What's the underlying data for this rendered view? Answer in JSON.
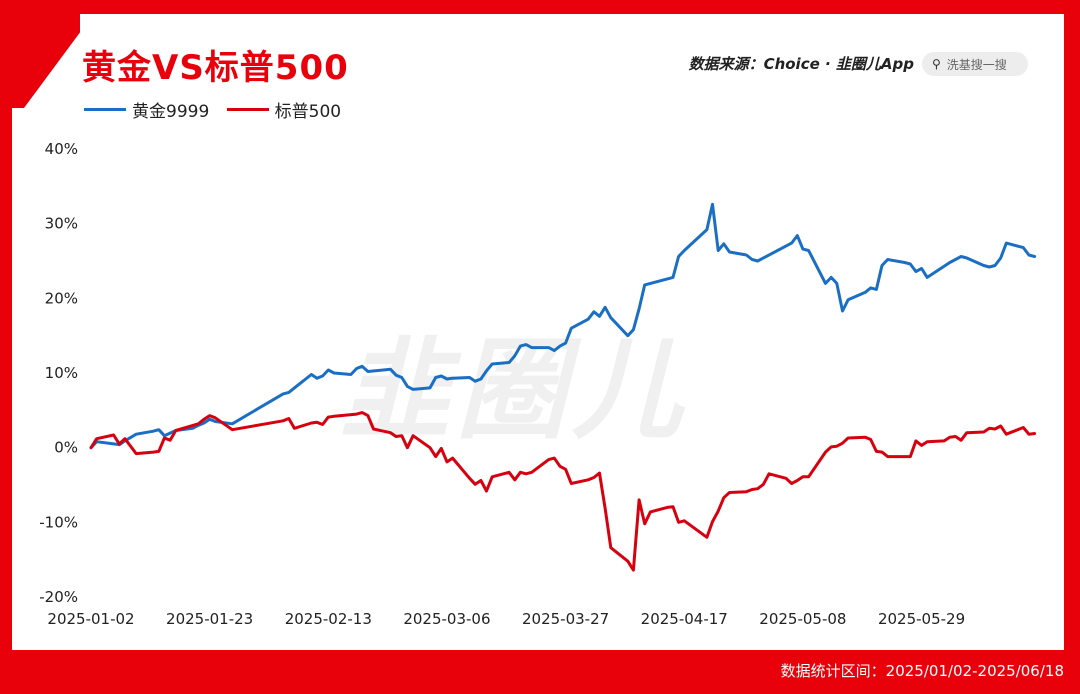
{
  "header": {
    "title": "黄金VS标普500"
  },
  "source": {
    "text": "数据来源：Choice · 韭圈儿App"
  },
  "search": {
    "placeholder": "洗基搜一搜",
    "icon": "search-icon"
  },
  "footer": {
    "text": "数据统计区间：2025/01/02-2025/06/18"
  },
  "watermark": {
    "text": "韭圈儿"
  },
  "colors": {
    "background": "#e8000b",
    "gold": "#1a6fc4",
    "sp500": "#d7000f"
  },
  "chart_data": {
    "type": "line",
    "title": "黄金VS标普500",
    "xlabel": "",
    "ylabel": "",
    "ylim": [
      -20,
      40
    ],
    "yticks": [
      40,
      30,
      20,
      10,
      0,
      -10,
      -20
    ],
    "ytick_labels": [
      "40%",
      "30%",
      "20%",
      "10%",
      "0%",
      "-10%",
      "-20%"
    ],
    "x_start": "2025-01-02",
    "x_end": "2025-06-18",
    "xticks": [
      "2025-01-02",
      "2025-01-23",
      "2025-02-13",
      "2025-03-06",
      "2025-03-27",
      "2025-04-17",
      "2025-05-08",
      "2025-05-29"
    ],
    "grid": false,
    "legend": "top-left",
    "series": [
      {
        "name": "黄金9999",
        "color": "#1a6fc4",
        "points": [
          [
            "2025-01-02",
            0.0
          ],
          [
            "2025-01-03",
            0.8
          ],
          [
            "2025-01-06",
            0.5
          ],
          [
            "2025-01-07",
            0.4
          ],
          [
            "2025-01-08",
            0.9
          ],
          [
            "2025-01-10",
            1.8
          ],
          [
            "2025-01-13",
            2.2
          ],
          [
            "2025-01-14",
            2.4
          ],
          [
            "2025-01-15",
            1.6
          ],
          [
            "2025-01-17",
            2.3
          ],
          [
            "2025-01-20",
            2.6
          ],
          [
            "2025-01-21",
            3.0
          ],
          [
            "2025-01-22",
            3.3
          ],
          [
            "2025-01-23",
            3.8
          ],
          [
            "2025-01-24",
            3.5
          ],
          [
            "2025-01-27",
            3.2
          ],
          [
            "2025-02-05",
            7.2
          ],
          [
            "2025-02-06",
            7.4
          ],
          [
            "2025-02-07",
            8.0
          ],
          [
            "2025-02-10",
            9.8
          ],
          [
            "2025-02-11",
            9.3
          ],
          [
            "2025-02-12",
            9.6
          ],
          [
            "2025-02-13",
            10.4
          ],
          [
            "2025-02-14",
            10.0
          ],
          [
            "2025-02-17",
            9.8
          ],
          [
            "2025-02-18",
            10.6
          ],
          [
            "2025-02-19",
            10.9
          ],
          [
            "2025-02-20",
            10.2
          ],
          [
            "2025-02-24",
            10.5
          ],
          [
            "2025-02-25",
            9.7
          ],
          [
            "2025-02-26",
            9.4
          ],
          [
            "2025-02-27",
            8.2
          ],
          [
            "2025-02-28",
            7.8
          ],
          [
            "2025-03-03",
            8.0
          ],
          [
            "2025-03-04",
            9.4
          ],
          [
            "2025-03-05",
            9.6
          ],
          [
            "2025-03-06",
            9.2
          ],
          [
            "2025-03-07",
            9.3
          ],
          [
            "2025-03-10",
            9.4
          ],
          [
            "2025-03-11",
            8.9
          ],
          [
            "2025-03-12",
            9.2
          ],
          [
            "2025-03-13",
            10.3
          ],
          [
            "2025-03-14",
            11.2
          ],
          [
            "2025-03-17",
            11.4
          ],
          [
            "2025-03-18",
            12.3
          ],
          [
            "2025-03-19",
            13.6
          ],
          [
            "2025-03-20",
            13.8
          ],
          [
            "2025-03-21",
            13.4
          ],
          [
            "2025-03-24",
            13.4
          ],
          [
            "2025-03-25",
            13.0
          ],
          [
            "2025-03-26",
            13.6
          ],
          [
            "2025-03-27",
            14.0
          ],
          [
            "2025-03-28",
            16.0
          ],
          [
            "2025-03-31",
            17.2
          ],
          [
            "2025-04-01",
            18.2
          ],
          [
            "2025-04-02",
            17.6
          ],
          [
            "2025-04-03",
            18.8
          ],
          [
            "2025-04-04",
            17.4
          ],
          [
            "2025-04-07",
            15.0
          ],
          [
            "2025-04-08",
            15.8
          ],
          [
            "2025-04-09",
            18.6
          ],
          [
            "2025-04-10",
            21.8
          ],
          [
            "2025-04-11",
            22.0
          ],
          [
            "2025-04-14",
            22.6
          ],
          [
            "2025-04-15",
            22.8
          ],
          [
            "2025-04-16",
            25.6
          ],
          [
            "2025-04-17",
            26.4
          ],
          [
            "2025-04-21",
            29.2
          ],
          [
            "2025-04-22",
            32.6
          ],
          [
            "2025-04-23",
            26.4
          ],
          [
            "2025-04-24",
            27.3
          ],
          [
            "2025-04-25",
            26.2
          ],
          [
            "2025-04-28",
            25.8
          ],
          [
            "2025-04-29",
            25.2
          ],
          [
            "2025-04-30",
            25.0
          ],
          [
            "2025-05-06",
            27.4
          ],
          [
            "2025-05-07",
            28.4
          ],
          [
            "2025-05-08",
            26.6
          ],
          [
            "2025-05-09",
            26.4
          ],
          [
            "2025-05-12",
            22.0
          ],
          [
            "2025-05-13",
            22.8
          ],
          [
            "2025-05-14",
            22.0
          ],
          [
            "2025-05-15",
            18.3
          ],
          [
            "2025-05-16",
            19.8
          ],
          [
            "2025-05-19",
            20.8
          ],
          [
            "2025-05-20",
            21.4
          ],
          [
            "2025-05-21",
            21.2
          ],
          [
            "2025-05-22",
            24.4
          ],
          [
            "2025-05-23",
            25.2
          ],
          [
            "2025-05-26",
            24.8
          ],
          [
            "2025-05-27",
            24.6
          ],
          [
            "2025-05-28",
            23.6
          ],
          [
            "2025-05-29",
            24.0
          ],
          [
            "2025-05-30",
            22.8
          ],
          [
            "2025-06-03",
            24.8
          ],
          [
            "2025-06-04",
            25.2
          ],
          [
            "2025-06-05",
            25.6
          ],
          [
            "2025-06-06",
            25.4
          ],
          [
            "2025-06-09",
            24.4
          ],
          [
            "2025-06-10",
            24.2
          ],
          [
            "2025-06-11",
            24.4
          ],
          [
            "2025-06-12",
            25.4
          ],
          [
            "2025-06-13",
            27.4
          ],
          [
            "2025-06-16",
            26.8
          ],
          [
            "2025-06-17",
            25.8
          ],
          [
            "2025-06-18",
            25.6
          ]
        ]
      },
      {
        "name": "标普500",
        "color": "#d7000f",
        "points": [
          [
            "2025-01-02",
            0.0
          ],
          [
            "2025-01-03",
            1.2
          ],
          [
            "2025-01-06",
            1.7
          ],
          [
            "2025-01-07",
            0.5
          ],
          [
            "2025-01-08",
            1.2
          ],
          [
            "2025-01-10",
            -0.8
          ],
          [
            "2025-01-13",
            -0.6
          ],
          [
            "2025-01-14",
            -0.5
          ],
          [
            "2025-01-15",
            1.3
          ],
          [
            "2025-01-16",
            1.0
          ],
          [
            "2025-01-17",
            2.3
          ],
          [
            "2025-01-21",
            3.2
          ],
          [
            "2025-01-22",
            3.8
          ],
          [
            "2025-01-23",
            4.3
          ],
          [
            "2025-01-24",
            4.0
          ],
          [
            "2025-01-27",
            2.4
          ],
          [
            "2025-02-05",
            3.6
          ],
          [
            "2025-02-06",
            3.9
          ],
          [
            "2025-02-07",
            2.6
          ],
          [
            "2025-02-10",
            3.3
          ],
          [
            "2025-02-11",
            3.4
          ],
          [
            "2025-02-12",
            3.1
          ],
          [
            "2025-02-13",
            4.1
          ],
          [
            "2025-02-14",
            4.2
          ],
          [
            "2025-02-18",
            4.5
          ],
          [
            "2025-02-19",
            4.7
          ],
          [
            "2025-02-20",
            4.3
          ],
          [
            "2025-02-21",
            2.5
          ],
          [
            "2025-02-24",
            2.0
          ],
          [
            "2025-02-25",
            1.5
          ],
          [
            "2025-02-26",
            1.6
          ],
          [
            "2025-02-27",
            0.0
          ],
          [
            "2025-02-28",
            1.6
          ],
          [
            "2025-03-03",
            0.0
          ],
          [
            "2025-03-04",
            -1.2
          ],
          [
            "2025-03-05",
            -0.1
          ],
          [
            "2025-03-06",
            -1.9
          ],
          [
            "2025-03-07",
            -1.4
          ],
          [
            "2025-03-10",
            -4.1
          ],
          [
            "2025-03-11",
            -4.9
          ],
          [
            "2025-03-12",
            -4.4
          ],
          [
            "2025-03-13",
            -5.8
          ],
          [
            "2025-03-14",
            -3.9
          ],
          [
            "2025-03-17",
            -3.3
          ],
          [
            "2025-03-18",
            -4.3
          ],
          [
            "2025-03-19",
            -3.3
          ],
          [
            "2025-03-20",
            -3.5
          ],
          [
            "2025-03-21",
            -3.3
          ],
          [
            "2025-03-24",
            -1.6
          ],
          [
            "2025-03-25",
            -1.4
          ],
          [
            "2025-03-26",
            -2.5
          ],
          [
            "2025-03-27",
            -2.9
          ],
          [
            "2025-03-28",
            -4.8
          ],
          [
            "2025-03-31",
            -4.3
          ],
          [
            "2025-04-01",
            -4.0
          ],
          [
            "2025-04-02",
            -3.4
          ],
          [
            "2025-04-03",
            -8.1
          ],
          [
            "2025-04-04",
            -13.4
          ],
          [
            "2025-04-07",
            -15.2
          ],
          [
            "2025-04-08",
            -16.4
          ],
          [
            "2025-04-09",
            -7.0
          ],
          [
            "2025-04-10",
            -10.2
          ],
          [
            "2025-04-11",
            -8.6
          ],
          [
            "2025-04-14",
            -8.0
          ],
          [
            "2025-04-15",
            -7.9
          ],
          [
            "2025-04-16",
            -10.0
          ],
          [
            "2025-04-17",
            -9.8
          ],
          [
            "2025-04-21",
            -12.0
          ],
          [
            "2025-04-22",
            -9.9
          ],
          [
            "2025-04-23",
            -8.5
          ],
          [
            "2025-04-24",
            -6.7
          ],
          [
            "2025-04-25",
            -6.0
          ],
          [
            "2025-04-28",
            -5.9
          ],
          [
            "2025-04-29",
            -5.6
          ],
          [
            "2025-04-30",
            -5.5
          ],
          [
            "2025-05-01",
            -4.9
          ],
          [
            "2025-05-02",
            -3.5
          ],
          [
            "2025-05-05",
            -4.1
          ],
          [
            "2025-05-06",
            -4.8
          ],
          [
            "2025-05-07",
            -4.4
          ],
          [
            "2025-05-08",
            -3.9
          ],
          [
            "2025-05-09",
            -3.9
          ],
          [
            "2025-05-12",
            -0.6
          ],
          [
            "2025-05-13",
            0.1
          ],
          [
            "2025-05-14",
            0.2
          ],
          [
            "2025-05-15",
            0.6
          ],
          [
            "2025-05-16",
            1.3
          ],
          [
            "2025-05-19",
            1.4
          ],
          [
            "2025-05-20",
            1.1
          ],
          [
            "2025-05-21",
            -0.5
          ],
          [
            "2025-05-22",
            -0.6
          ],
          [
            "2025-05-23",
            -1.2
          ],
          [
            "2025-05-27",
            -1.2
          ],
          [
            "2025-05-28",
            0.9
          ],
          [
            "2025-05-29",
            0.3
          ],
          [
            "2025-05-30",
            0.8
          ],
          [
            "2025-06-02",
            0.9
          ],
          [
            "2025-06-03",
            1.4
          ],
          [
            "2025-06-04",
            1.5
          ],
          [
            "2025-06-05",
            1.0
          ],
          [
            "2025-06-06",
            2.0
          ],
          [
            "2025-06-09",
            2.1
          ],
          [
            "2025-06-10",
            2.6
          ],
          [
            "2025-06-11",
            2.5
          ],
          [
            "2025-06-12",
            2.9
          ],
          [
            "2025-06-13",
            1.8
          ],
          [
            "2025-06-16",
            2.7
          ],
          [
            "2025-06-17",
            1.8
          ],
          [
            "2025-06-18",
            1.9
          ]
        ]
      }
    ]
  }
}
